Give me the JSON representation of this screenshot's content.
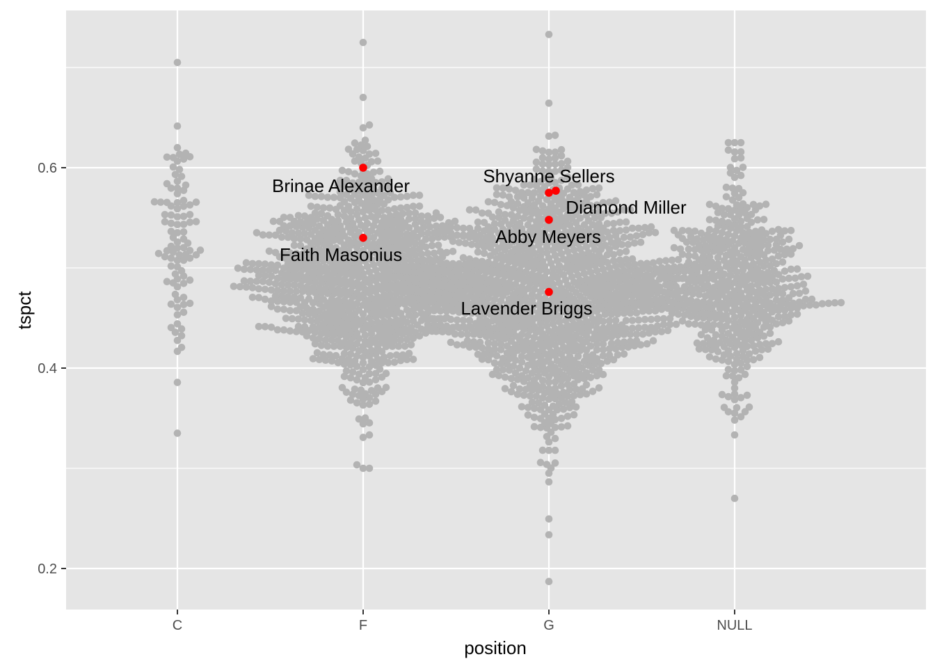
{
  "chart_data": {
    "type": "scatter",
    "subtype": "beeswarm",
    "title": "",
    "xlabel": "position",
    "ylabel": "tspct",
    "categories": [
      "C",
      "F",
      "G",
      "NULL"
    ],
    "ylim": [
      0.16,
      0.76
    ],
    "yticks": [
      0.2,
      0.4,
      0.6
    ],
    "yticks_minor": [
      0.3,
      0.5,
      0.7
    ],
    "ytick_labels": [
      "0.2",
      "0.4",
      "0.6"
    ],
    "grid": true,
    "background": "#e5e5e5",
    "gridline_color": "#ffffff",
    "point_color": "#b3b3b3",
    "highlight_color": "#ff0000",
    "series": [
      {
        "category": "C",
        "count": 95,
        "center": 0.53,
        "spread": 0.055,
        "min": 0.335,
        "max": 0.705
      },
      {
        "category": "F",
        "count": 900,
        "center": 0.49,
        "spread": 0.055,
        "min": 0.3,
        "max": 0.725
      },
      {
        "category": "G",
        "count": 1200,
        "center": 0.475,
        "spread": 0.06,
        "min": 0.187,
        "max": 0.733
      },
      {
        "category": "NULL",
        "count": 500,
        "center": 0.48,
        "spread": 0.05,
        "min": 0.27,
        "max": 0.625
      }
    ],
    "highlights": [
      {
        "name": "Brinae Alexander",
        "category": "F",
        "value": 0.6
      },
      {
        "name": "Faith Masonius",
        "category": "F",
        "value": 0.53
      },
      {
        "name": "Shyanne Sellers",
        "category": "G",
        "value": 0.575
      },
      {
        "name": "Diamond Miller",
        "category": "G",
        "value": 0.577
      },
      {
        "name": "Abby Meyers",
        "category": "G",
        "value": 0.548
      },
      {
        "name": "Lavender Briggs",
        "category": "G",
        "value": 0.476
      }
    ]
  }
}
